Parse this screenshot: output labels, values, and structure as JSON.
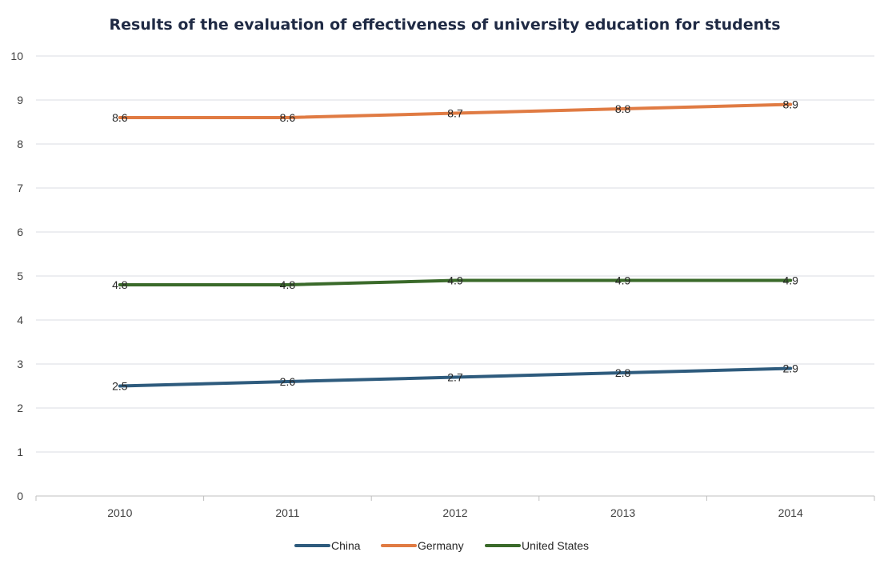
{
  "chart_data": {
    "type": "line",
    "title": "Results of the evaluation of effectiveness of university education for students",
    "xlabel": "",
    "ylabel": "",
    "categories": [
      "2010",
      "2011",
      "2012",
      "2013",
      "2014"
    ],
    "ylim": [
      0,
      10
    ],
    "yticks": [
      "0",
      "1",
      "2",
      "3",
      "4",
      "5",
      "6",
      "7",
      "8",
      "9",
      "10"
    ],
    "grid": true,
    "legend_position": "bottom",
    "series": [
      {
        "name": "China",
        "color": "#2e5b7d",
        "values": [
          2.5,
          2.6,
          2.7,
          2.8,
          2.9
        ],
        "labels": [
          "2.5",
          "2.6",
          "2.7",
          "2.8",
          "2.9"
        ]
      },
      {
        "name": "Germany",
        "color": "#e07b43",
        "values": [
          8.6,
          8.6,
          8.7,
          8.8,
          8.9
        ],
        "labels": [
          "8.6",
          "8.6",
          "8.7",
          "8.8",
          "8.9"
        ]
      },
      {
        "name": "United States",
        "color": "#3a6a2a",
        "values": [
          4.8,
          4.8,
          4.9,
          4.9,
          4.9
        ],
        "labels": [
          "4.8",
          "4.8",
          "4.9",
          "4.9",
          "4.9"
        ]
      }
    ]
  }
}
